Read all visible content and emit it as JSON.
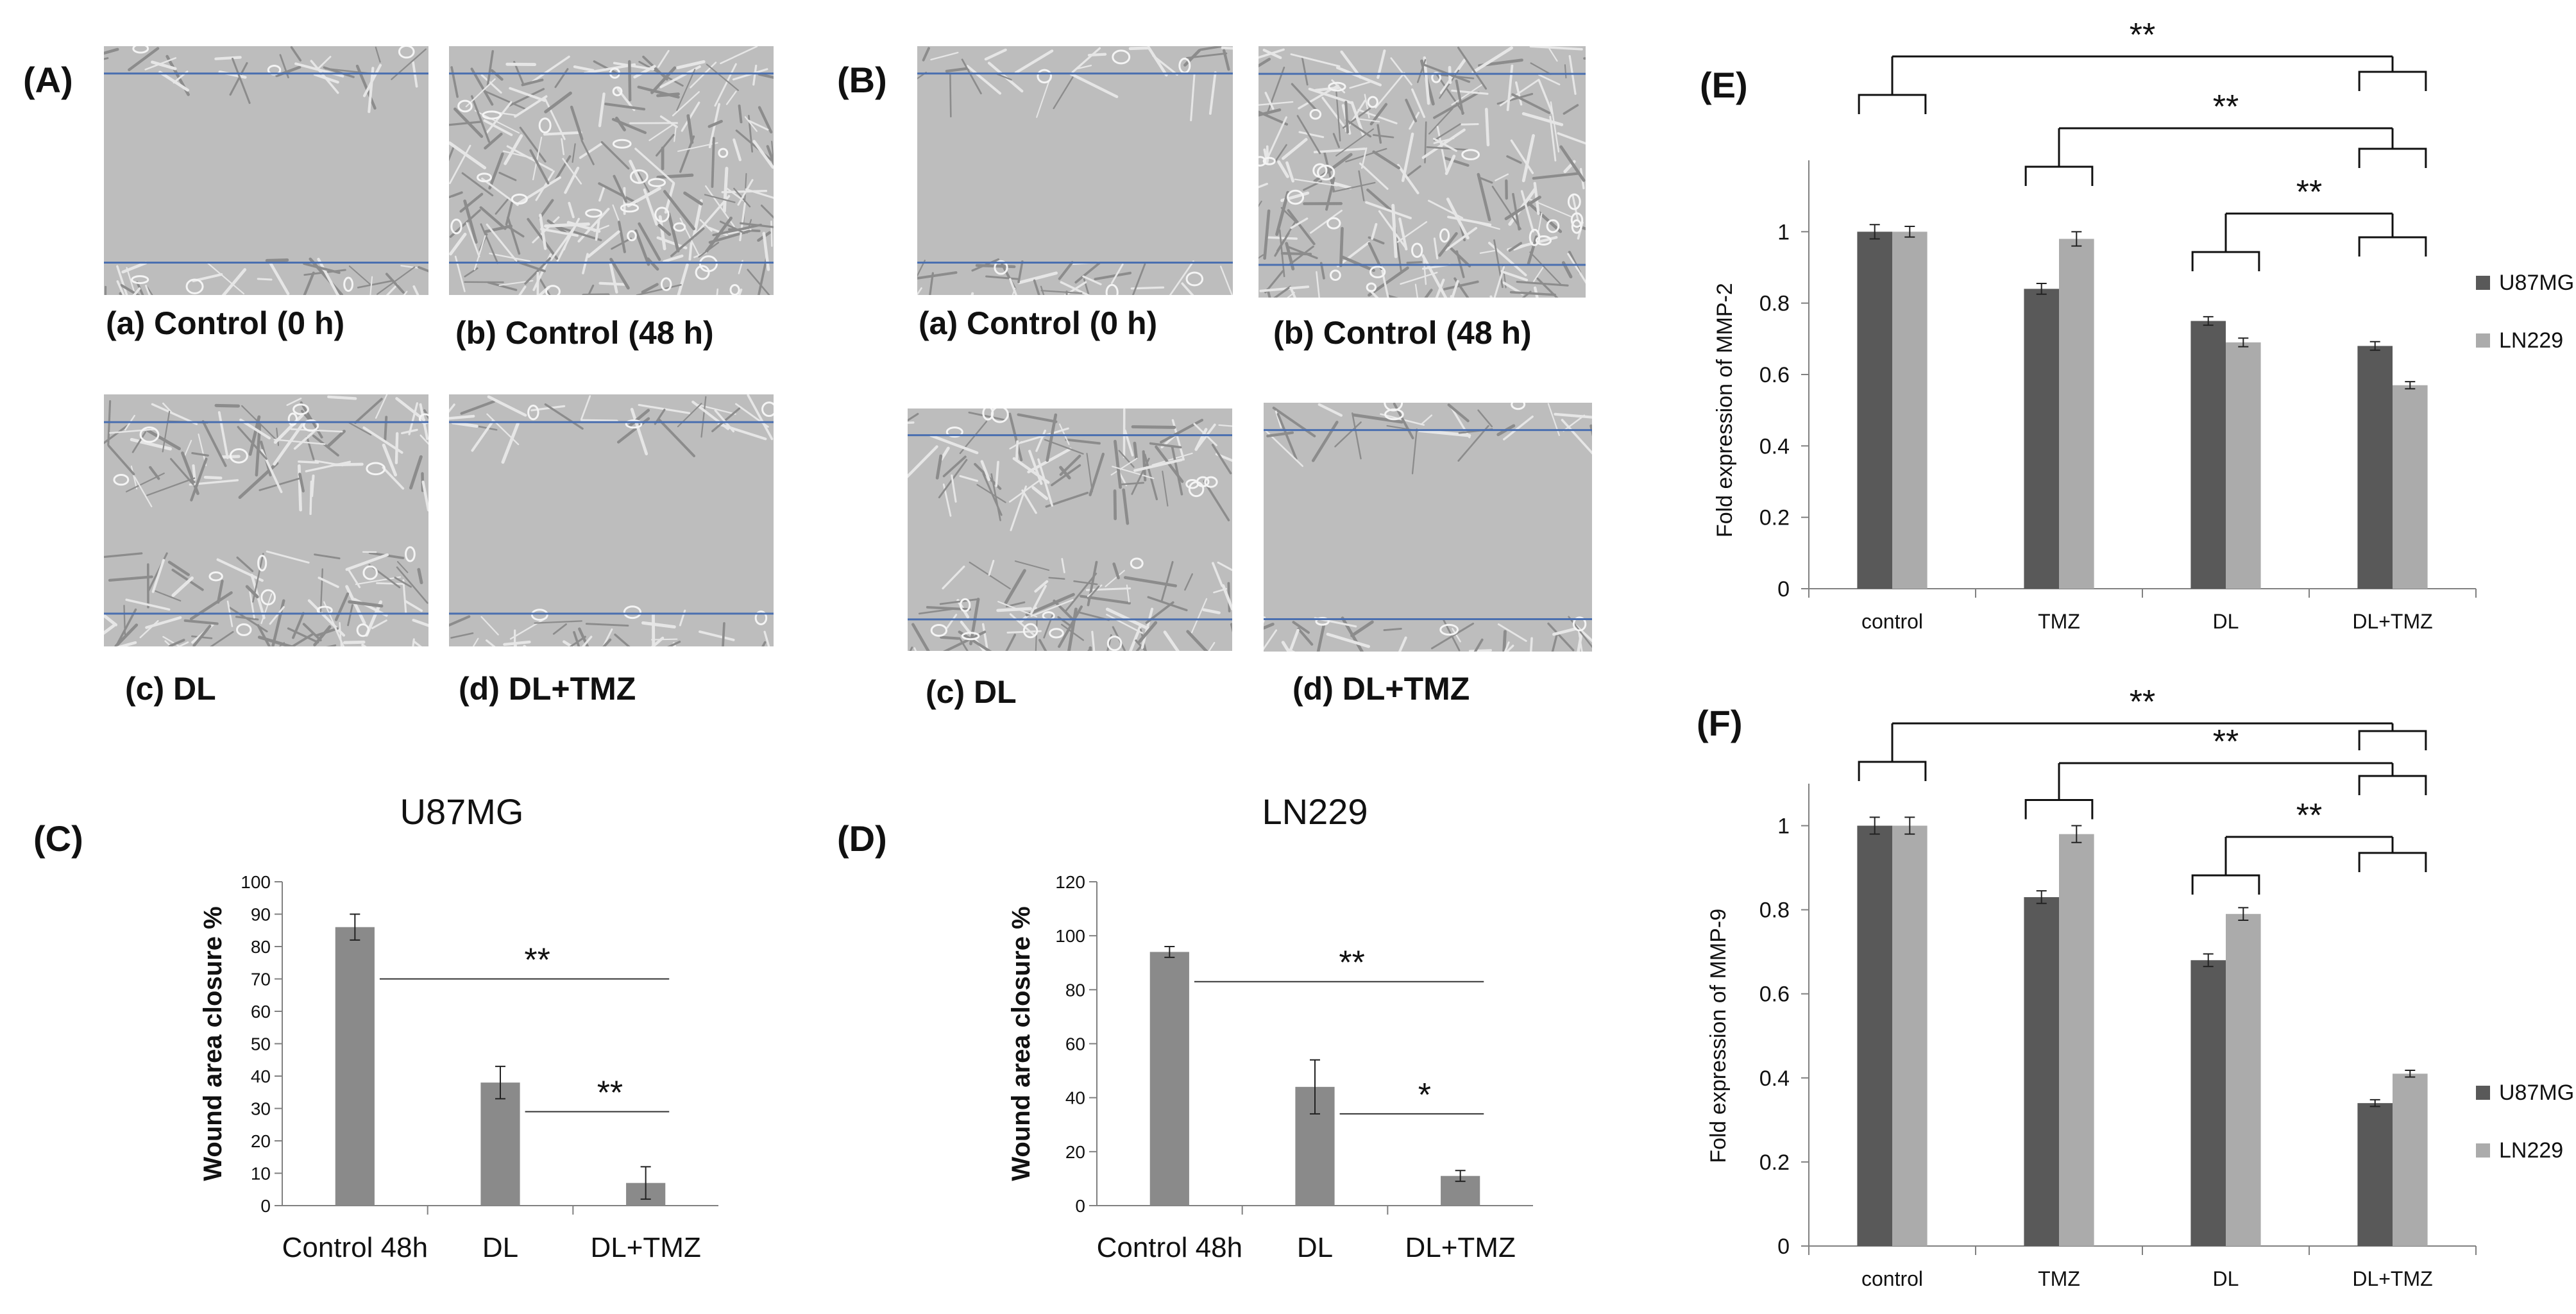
{
  "panels": {
    "A": {
      "label": "(A)",
      "images": [
        {
          "caption": "(a) Control (0 h)",
          "state": "open"
        },
        {
          "caption": "(b) Control (48 h)",
          "state": "closed"
        },
        {
          "caption": "(c) DL",
          "state": "partial"
        },
        {
          "caption": "(d) DL+TMZ",
          "state": "open"
        }
      ]
    },
    "B": {
      "label": "(B)",
      "images": [
        {
          "caption": "(a) Control (0 h)",
          "state": "open"
        },
        {
          "caption": "(b) Control (48 h)",
          "state": "closed"
        },
        {
          "caption": "(c) DL",
          "state": "partial"
        },
        {
          "caption": "(d) DL+TMZ",
          "state": "open"
        }
      ]
    },
    "C": {
      "label": "(C)"
    },
    "D": {
      "label": "(D)"
    },
    "E": {
      "label": "(E)"
    },
    "F": {
      "label": "(F)"
    }
  },
  "colors": {
    "bar_gray": "#8a8a8a",
    "u87mg": "#595959",
    "ln229": "#ababab",
    "scratch_line": "#4a6fb0",
    "axis": "#808080"
  },
  "chart_data": [
    {
      "id": "C",
      "type": "bar",
      "title": "U87MG",
      "ylabel": "Wound area closure %",
      "xlabel": "",
      "categories": [
        "Control 48h",
        "DL",
        "DL+TMZ"
      ],
      "values": [
        86,
        38,
        7
      ],
      "errors": [
        4,
        5,
        5
      ],
      "ylim": [
        0,
        100
      ],
      "yticks": [
        0,
        10,
        20,
        30,
        40,
        50,
        60,
        70,
        80,
        90,
        100
      ],
      "significance": [
        {
          "from": 0,
          "to": 2,
          "label": "**",
          "y": 70
        },
        {
          "from": 1,
          "to": 2,
          "label": "**",
          "y": 29
        }
      ]
    },
    {
      "id": "D",
      "type": "bar",
      "title": "LN229",
      "ylabel": "Wound area closure %",
      "xlabel": "",
      "categories": [
        "Control 48h",
        "DL",
        "DL+TMZ"
      ],
      "values": [
        94,
        44,
        11
      ],
      "errors": [
        2,
        10,
        2
      ],
      "ylim": [
        0,
        120
      ],
      "yticks": [
        0,
        20,
        40,
        60,
        80,
        100,
        120
      ],
      "significance": [
        {
          "from": 0,
          "to": 2,
          "label": "**",
          "y": 83
        },
        {
          "from": 1,
          "to": 2,
          "label": "*",
          "y": 34
        }
      ]
    },
    {
      "id": "E",
      "type": "bar",
      "ylabel": "Fold expression of MMP-2",
      "xlabel": "",
      "categories": [
        "control",
        "TMZ",
        "DL",
        "DL+TMZ"
      ],
      "series": [
        {
          "name": "U87MG",
          "values": [
            1.0,
            0.84,
            0.75,
            0.68
          ],
          "errors": [
            0.02,
            0.015,
            0.012,
            0.012
          ]
        },
        {
          "name": "LN229",
          "values": [
            1.0,
            0.98,
            0.69,
            0.57
          ],
          "errors": [
            0.015,
            0.02,
            0.012,
            0.01
          ]
        }
      ],
      "ylim": [
        0,
        1.2
      ],
      "yticks": [
        0,
        0.2,
        0.4,
        0.6,
        0.8,
        1
      ],
      "ytick_labels": [
        "0",
        "0.2",
        "0.4",
        "0.6",
        "0.8",
        "1"
      ],
      "legend": "right",
      "significance": [
        {
          "from": 0,
          "to": 3,
          "label": "**"
        },
        {
          "from": 1,
          "to": 3,
          "label": "**"
        },
        {
          "from": 2,
          "to": 3,
          "label": "**"
        }
      ]
    },
    {
      "id": "F",
      "type": "bar",
      "ylabel": "Fold expression of MMP-9",
      "xlabel": "",
      "categories": [
        "control",
        "TMZ",
        "DL",
        "DL+TMZ"
      ],
      "series": [
        {
          "name": "U87MG",
          "values": [
            1.0,
            0.83,
            0.68,
            0.34
          ],
          "errors": [
            0.02,
            0.015,
            0.015,
            0.008
          ]
        },
        {
          "name": "LN229",
          "values": [
            1.0,
            0.98,
            0.79,
            0.41
          ],
          "errors": [
            0.02,
            0.02,
            0.015,
            0.008
          ]
        }
      ],
      "ylim": [
        0,
        1.1
      ],
      "yticks": [
        0,
        0.2,
        0.4,
        0.6,
        0.8,
        1
      ],
      "ytick_labels": [
        "0",
        "0.2",
        "0.4",
        "0.6",
        "0.8",
        "1"
      ],
      "legend": "right",
      "significance": [
        {
          "from": 0,
          "to": 3,
          "label": "**"
        },
        {
          "from": 1,
          "to": 3,
          "label": "**"
        },
        {
          "from": 2,
          "to": 3,
          "label": "**"
        }
      ]
    }
  ]
}
